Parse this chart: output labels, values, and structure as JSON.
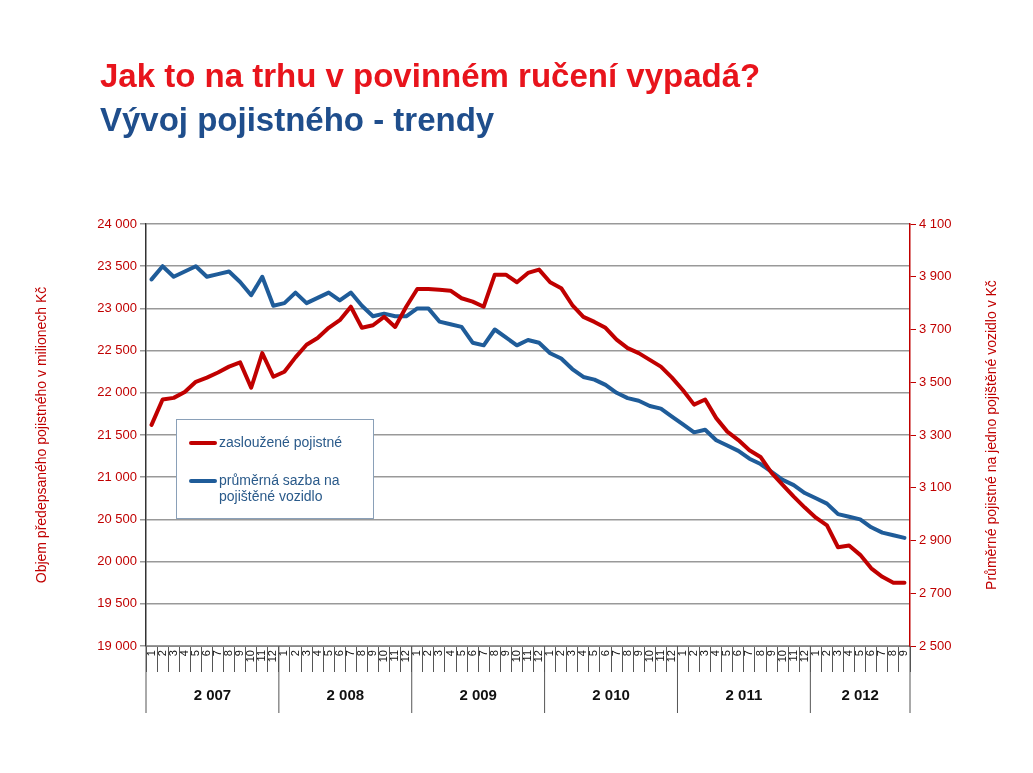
{
  "chart_data": {
    "type": "line",
    "title": "Jak to na trhu v povinném ručení vypadá?",
    "subtitle": "Vývoj pojistného - trendy",
    "ylabel": "Objem předepsaného pojistného v milionech Kč",
    "y2label": "Průměrné pojistné na jedno pojištěné vozidlo v Kč",
    "categories": [
      "1",
      "2",
      "3",
      "4",
      "5",
      "6",
      "7",
      "8",
      "9",
      "10",
      "11",
      "12",
      "1",
      "2",
      "3",
      "4",
      "5",
      "6",
      "7",
      "8",
      "9",
      "10",
      "11",
      "12",
      "1",
      "2",
      "3",
      "4",
      "5",
      "6",
      "7",
      "8",
      "9",
      "10",
      "11",
      "12",
      "1",
      "2",
      "3",
      "4",
      "5",
      "6",
      "7",
      "8",
      "9",
      "10",
      "11",
      "12",
      "1",
      "2",
      "3",
      "4",
      "5",
      "6",
      "7",
      "8",
      "9",
      "10",
      "11",
      "12",
      "1",
      "2",
      "3",
      "4",
      "5",
      "6",
      "7",
      "8",
      "9"
    ],
    "annotations": [
      "2 007",
      "2 008",
      "2 009",
      "2 010",
      "2 011",
      "2 012"
    ],
    "series": [
      {
        "name": "zasloužené pojistné",
        "color": "#c00000",
        "values": [
          21620,
          21920,
          21940,
          22010,
          22130,
          22180,
          22240,
          22310,
          22360,
          22060,
          22470,
          22190,
          22250,
          22420,
          22570,
          22650,
          22770,
          22860,
          23020,
          22770,
          22800,
          22900,
          22780,
          23020,
          23230,
          23230,
          23220,
          23210,
          23120,
          23080,
          23020,
          23400,
          23400,
          23310,
          23420,
          23460,
          23310,
          23240,
          23040,
          22900,
          22840,
          22770,
          22630,
          22530,
          22470,
          22390,
          22310,
          22180,
          22030,
          21860,
          21920,
          21700,
          21540,
          21440,
          21320,
          21240,
          21050,
          20910,
          20770,
          20640,
          20520,
          20430,
          20170,
          20190,
          20080,
          19920,
          19820,
          19750,
          19750
        ]
      },
      {
        "name": "průměrná sazba na pojištěné vozidlo",
        "color": "#1f5c99",
        "axis": "y2",
        "values": [
          3890,
          3940,
          3900,
          3920,
          3940,
          3900,
          3910,
          3920,
          3880,
          3830,
          3900,
          3790,
          3800,
          3840,
          3800,
          3820,
          3840,
          3810,
          3840,
          3790,
          3750,
          3760,
          3750,
          3750,
          3780,
          3780,
          3730,
          3720,
          3710,
          3650,
          3640,
          3700,
          3670,
          3640,
          3660,
          3650,
          3610,
          3590,
          3550,
          3520,
          3510,
          3490,
          3460,
          3440,
          3430,
          3410,
          3400,
          3370,
          3340,
          3310,
          3320,
          3280,
          3260,
          3240,
          3210,
          3190,
          3160,
          3130,
          3110,
          3080,
          3060,
          3040,
          3000,
          2990,
          2980,
          2950,
          2930,
          2920,
          2910
        ]
      }
    ],
    "ylim": [
      19000,
      24000
    ],
    "yticks": [
      {
        "value": 19000,
        "label": "19 000"
      },
      {
        "value": 19500,
        "label": "19 500"
      },
      {
        "value": 20000,
        "label": "20 000"
      },
      {
        "value": 20500,
        "label": "20 500"
      },
      {
        "value": 21000,
        "label": "21 000"
      },
      {
        "value": 21500,
        "label": "21 500"
      },
      {
        "value": 22000,
        "label": "22 000"
      },
      {
        "value": 22500,
        "label": "22 500"
      },
      {
        "value": 23000,
        "label": "23 000"
      },
      {
        "value": 23500,
        "label": "23 500"
      },
      {
        "value": 24000,
        "label": "24 000"
      }
    ],
    "y2lim": [
      2500,
      4100
    ],
    "y2ticks": [
      {
        "value": 2500,
        "label": "2 500"
      },
      {
        "value": 2700,
        "label": "2 700"
      },
      {
        "value": 2900,
        "label": "2 900"
      },
      {
        "value": 3100,
        "label": "3 100"
      },
      {
        "value": 3300,
        "label": "3 300"
      },
      {
        "value": 3500,
        "label": "3 500"
      },
      {
        "value": 3700,
        "label": "3 700"
      },
      {
        "value": 3900,
        "label": "3 900"
      },
      {
        "value": 4100,
        "label": "4 100"
      }
    ],
    "grid": "y",
    "legend": "left",
    "marker": "none",
    "line_style": "solid"
  }
}
